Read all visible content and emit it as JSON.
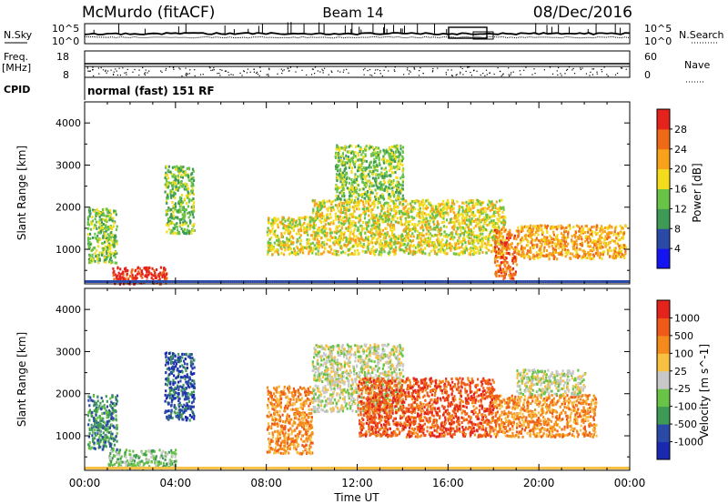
{
  "header": {
    "station": "McMurdo (fitACF)",
    "beam": "Beam 14",
    "date": "08/Dec/2016"
  },
  "status_panel": {
    "left_label_top": "N.Sky",
    "left_label_freq": "Freq.",
    "left_label_freq_unit": "[MHz]",
    "left_label_cpid": "CPID",
    "right_label_top": "N.Search",
    "right_label_nave": "Nave",
    "scale_top_left": "10^5",
    "scale_bottom_left": "10^0",
    "scale_top_right": "10^5",
    "scale_bottom_right": "10^0",
    "freq_top": "18",
    "freq_bottom": "8",
    "nave_top": "60",
    "nave_bottom": "0",
    "cpid_text": "normal (fast) 151 RF"
  },
  "axes": {
    "xlabel": "Time UT",
    "ylabel": "Slant Range [km]",
    "x_ticks": [
      "00:00",
      "04:00",
      "08:00",
      "12:00",
      "16:00",
      "20:00",
      "00:00"
    ],
    "y_ticks": [
      "1000",
      "2000",
      "3000",
      "4000"
    ]
  },
  "colors": {
    "power": [
      "#1414f0",
      "#2b4aa8",
      "#3f9a55",
      "#68c346",
      "#f2dc1c",
      "#f7a21a",
      "#ef6a17",
      "#e5231d"
    ],
    "velocity": [
      "#e5231d",
      "#ef5a18",
      "#f58a1c",
      "#f7c042",
      "#c8c8c8",
      "#68c346",
      "#3f9a55",
      "#2b4aa8",
      "#1a2ab0"
    ]
  },
  "chart_data": [
    {
      "type": "heatmap",
      "title": "Power",
      "colorbar_label": "Power [dB]",
      "colorbar_ticks": [
        "4",
        "8",
        "12",
        "16",
        "20",
        "24",
        "28"
      ],
      "x_range_hours": [
        0,
        24
      ],
      "y_range_km": [
        180,
        4500
      ],
      "xlabel": "",
      "ylabel": "Slant Range [km]",
      "regions": [
        {
          "t0": 1.2,
          "t1": 3.6,
          "r0": 200,
          "r1": 600,
          "level": 7
        },
        {
          "t0": 0.1,
          "t1": 1.4,
          "r0": 700,
          "r1": 2000,
          "level": 3
        },
        {
          "t0": 3.5,
          "t1": 4.8,
          "r0": 1400,
          "r1": 3000,
          "level": 3
        },
        {
          "t0": 8.0,
          "t1": 10.0,
          "r0": 900,
          "r1": 1800,
          "level": 4
        },
        {
          "t0": 10.0,
          "t1": 18.5,
          "r0": 900,
          "r1": 2200,
          "level": 4
        },
        {
          "t0": 11.0,
          "t1": 14.0,
          "r0": 2200,
          "r1": 3500,
          "level": 3
        },
        {
          "t0": 18.0,
          "t1": 19.0,
          "r0": 300,
          "r1": 1500,
          "level": 6
        },
        {
          "t0": 19.0,
          "t1": 23.8,
          "r0": 800,
          "r1": 1600,
          "level": 5
        }
      ]
    },
    {
      "type": "heatmap",
      "title": "Velocity",
      "colorbar_label": "Velocity [m s^-1]",
      "colorbar_ticks": [
        "1000",
        "500",
        "100",
        "25",
        "-25",
        "-100",
        "-500",
        "-1000"
      ],
      "x_range_hours": [
        0,
        24
      ],
      "y_range_km": [
        180,
        4500
      ],
      "xlabel": "Time UT",
      "ylabel": "Slant Range [km]",
      "regions": [
        {
          "t0": 1.0,
          "t1": 4.0,
          "r0": 250,
          "r1": 700,
          "level": 5
        },
        {
          "t0": 0.1,
          "t1": 1.4,
          "r0": 700,
          "r1": 2000,
          "level": 6
        },
        {
          "t0": 3.5,
          "t1": 4.8,
          "r0": 1400,
          "r1": 3000,
          "level": 7
        },
        {
          "t0": 8.0,
          "t1": 10.0,
          "r0": 600,
          "r1": 2200,
          "level": 2
        },
        {
          "t0": 10.0,
          "t1": 14.0,
          "r0": 1600,
          "r1": 3200,
          "level": 4
        },
        {
          "t0": 12.0,
          "t1": 18.0,
          "r0": 1000,
          "r1": 2400,
          "level": 1
        },
        {
          "t0": 18.0,
          "t1": 22.5,
          "r0": 1000,
          "r1": 2000,
          "level": 2
        },
        {
          "t0": 19.0,
          "t1": 22.0,
          "r0": 2000,
          "r1": 2600,
          "level": 4
        }
      ]
    }
  ]
}
